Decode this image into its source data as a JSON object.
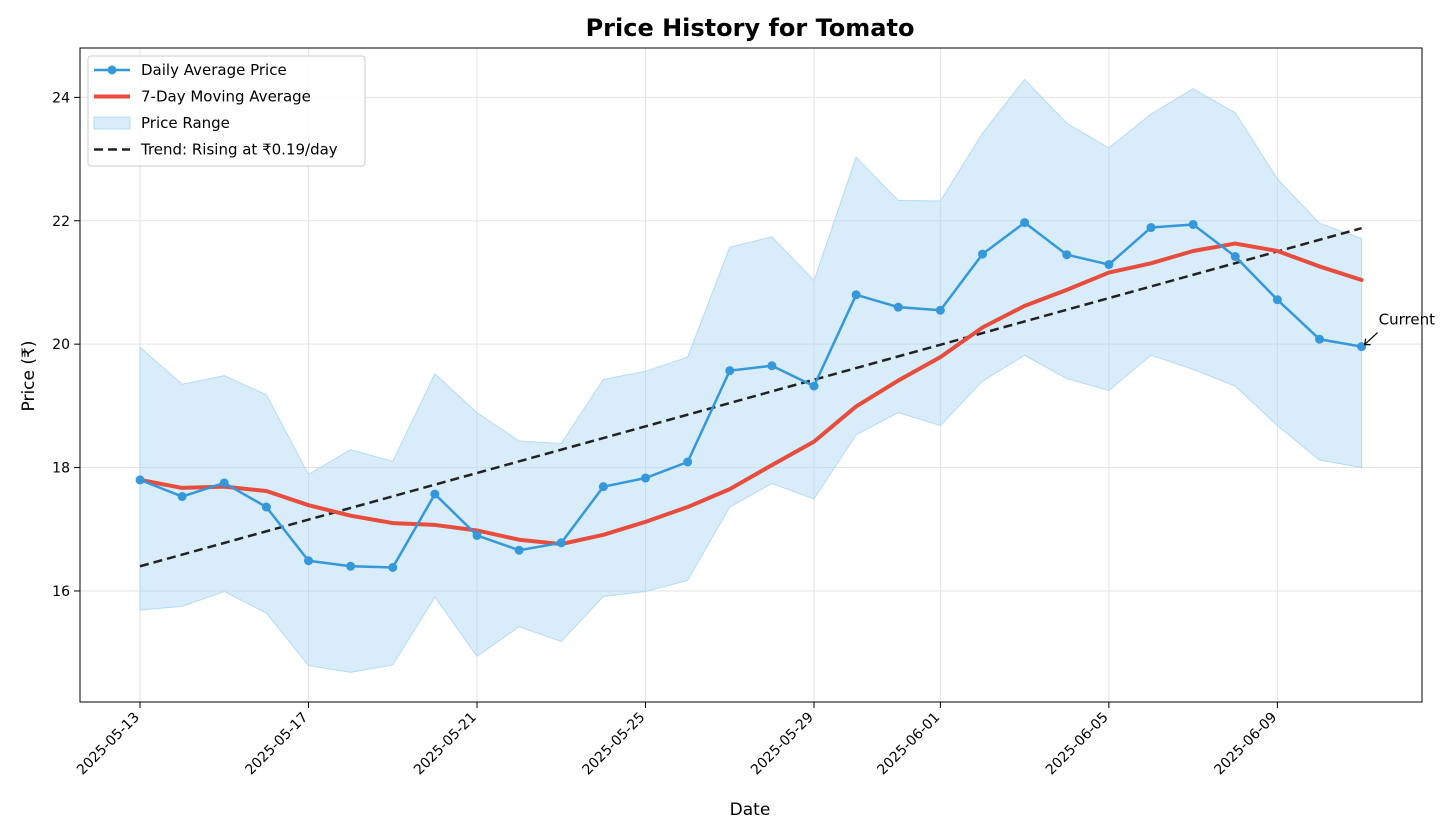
{
  "chart_data": {
    "type": "line",
    "title": "Price History for Tomato",
    "xlabel": "Date",
    "ylabel": "Price (₹)",
    "x_start": "2025-05-13",
    "x": [
      "2025-05-13",
      "2025-05-14",
      "2025-05-15",
      "2025-05-16",
      "2025-05-17",
      "2025-05-18",
      "2025-05-19",
      "2025-05-20",
      "2025-05-21",
      "2025-05-22",
      "2025-05-23",
      "2025-05-24",
      "2025-05-25",
      "2025-05-26",
      "2025-05-27",
      "2025-05-28",
      "2025-05-29",
      "2025-05-30",
      "2025-05-31",
      "2025-06-01",
      "2025-06-02",
      "2025-06-03",
      "2025-06-04",
      "2025-06-05",
      "2025-06-06",
      "2025-06-07",
      "2025-06-08",
      "2025-06-09",
      "2025-06-10",
      "2025-06-11"
    ],
    "xticks": [
      "2025-05-13",
      "2025-05-17",
      "2025-05-21",
      "2025-05-25",
      "2025-05-29",
      "2025-06-01",
      "2025-06-05",
      "2025-06-09"
    ],
    "yticks": [
      16,
      18,
      20,
      22,
      24
    ],
    "ylim": [
      14.2,
      24.8
    ],
    "grid": true,
    "legend_position": "top-left",
    "series": [
      {
        "name": "Daily Average Price",
        "style": "line-with-markers",
        "color": "#3498db",
        "values": [
          17.8,
          17.53,
          17.75,
          17.36,
          16.49,
          16.4,
          16.38,
          17.57,
          16.9,
          16.66,
          16.78,
          17.69,
          17.83,
          18.09,
          19.57,
          19.65,
          19.32,
          20.8,
          20.6,
          20.55,
          21.46,
          21.97,
          21.45,
          21.29,
          21.89,
          21.94,
          21.42,
          20.72,
          20.08,
          19.96
        ]
      },
      {
        "name": "7-Day Moving Average",
        "style": "line",
        "color": "#e74c3c",
        "values": [
          17.8,
          17.67,
          17.69,
          17.62,
          17.39,
          17.22,
          17.1,
          17.07,
          16.98,
          16.83,
          16.76,
          16.91,
          17.12,
          17.36,
          17.65,
          18.04,
          18.42,
          18.99,
          19.41,
          19.79,
          20.27,
          20.62,
          20.88,
          21.16,
          21.31,
          21.51,
          21.63,
          21.51,
          21.26,
          21.04
        ]
      },
      {
        "name": "Price Range",
        "style": "band",
        "color": "#a9d4f2",
        "upper": [
          19.95,
          19.35,
          19.49,
          19.18,
          17.89,
          18.29,
          18.1,
          19.52,
          18.89,
          18.43,
          18.39,
          19.43,
          19.56,
          19.79,
          21.57,
          21.74,
          21.03,
          23.03,
          22.33,
          22.32,
          23.42,
          24.29,
          23.58,
          23.18,
          23.73,
          24.14,
          23.75,
          22.68,
          21.96,
          21.71
        ],
        "lower": [
          15.69,
          15.75,
          15.99,
          15.64,
          14.79,
          14.68,
          14.8,
          15.9,
          14.94,
          15.42,
          15.18,
          15.91,
          15.99,
          16.17,
          17.36,
          17.74,
          17.49,
          18.53,
          18.89,
          18.68,
          19.4,
          19.82,
          19.44,
          19.25,
          19.82,
          19.59,
          19.32,
          18.68,
          18.12,
          18.0
        ]
      },
      {
        "name": "Trend: Rising at ₹0.19/day",
        "style": "dashed",
        "color": "#222222",
        "start_value": 16.4,
        "end_value": 21.88
      }
    ],
    "annotations": [
      {
        "text": "Current",
        "target_date": "2025-06-11",
        "target_value": 19.96
      }
    ]
  }
}
